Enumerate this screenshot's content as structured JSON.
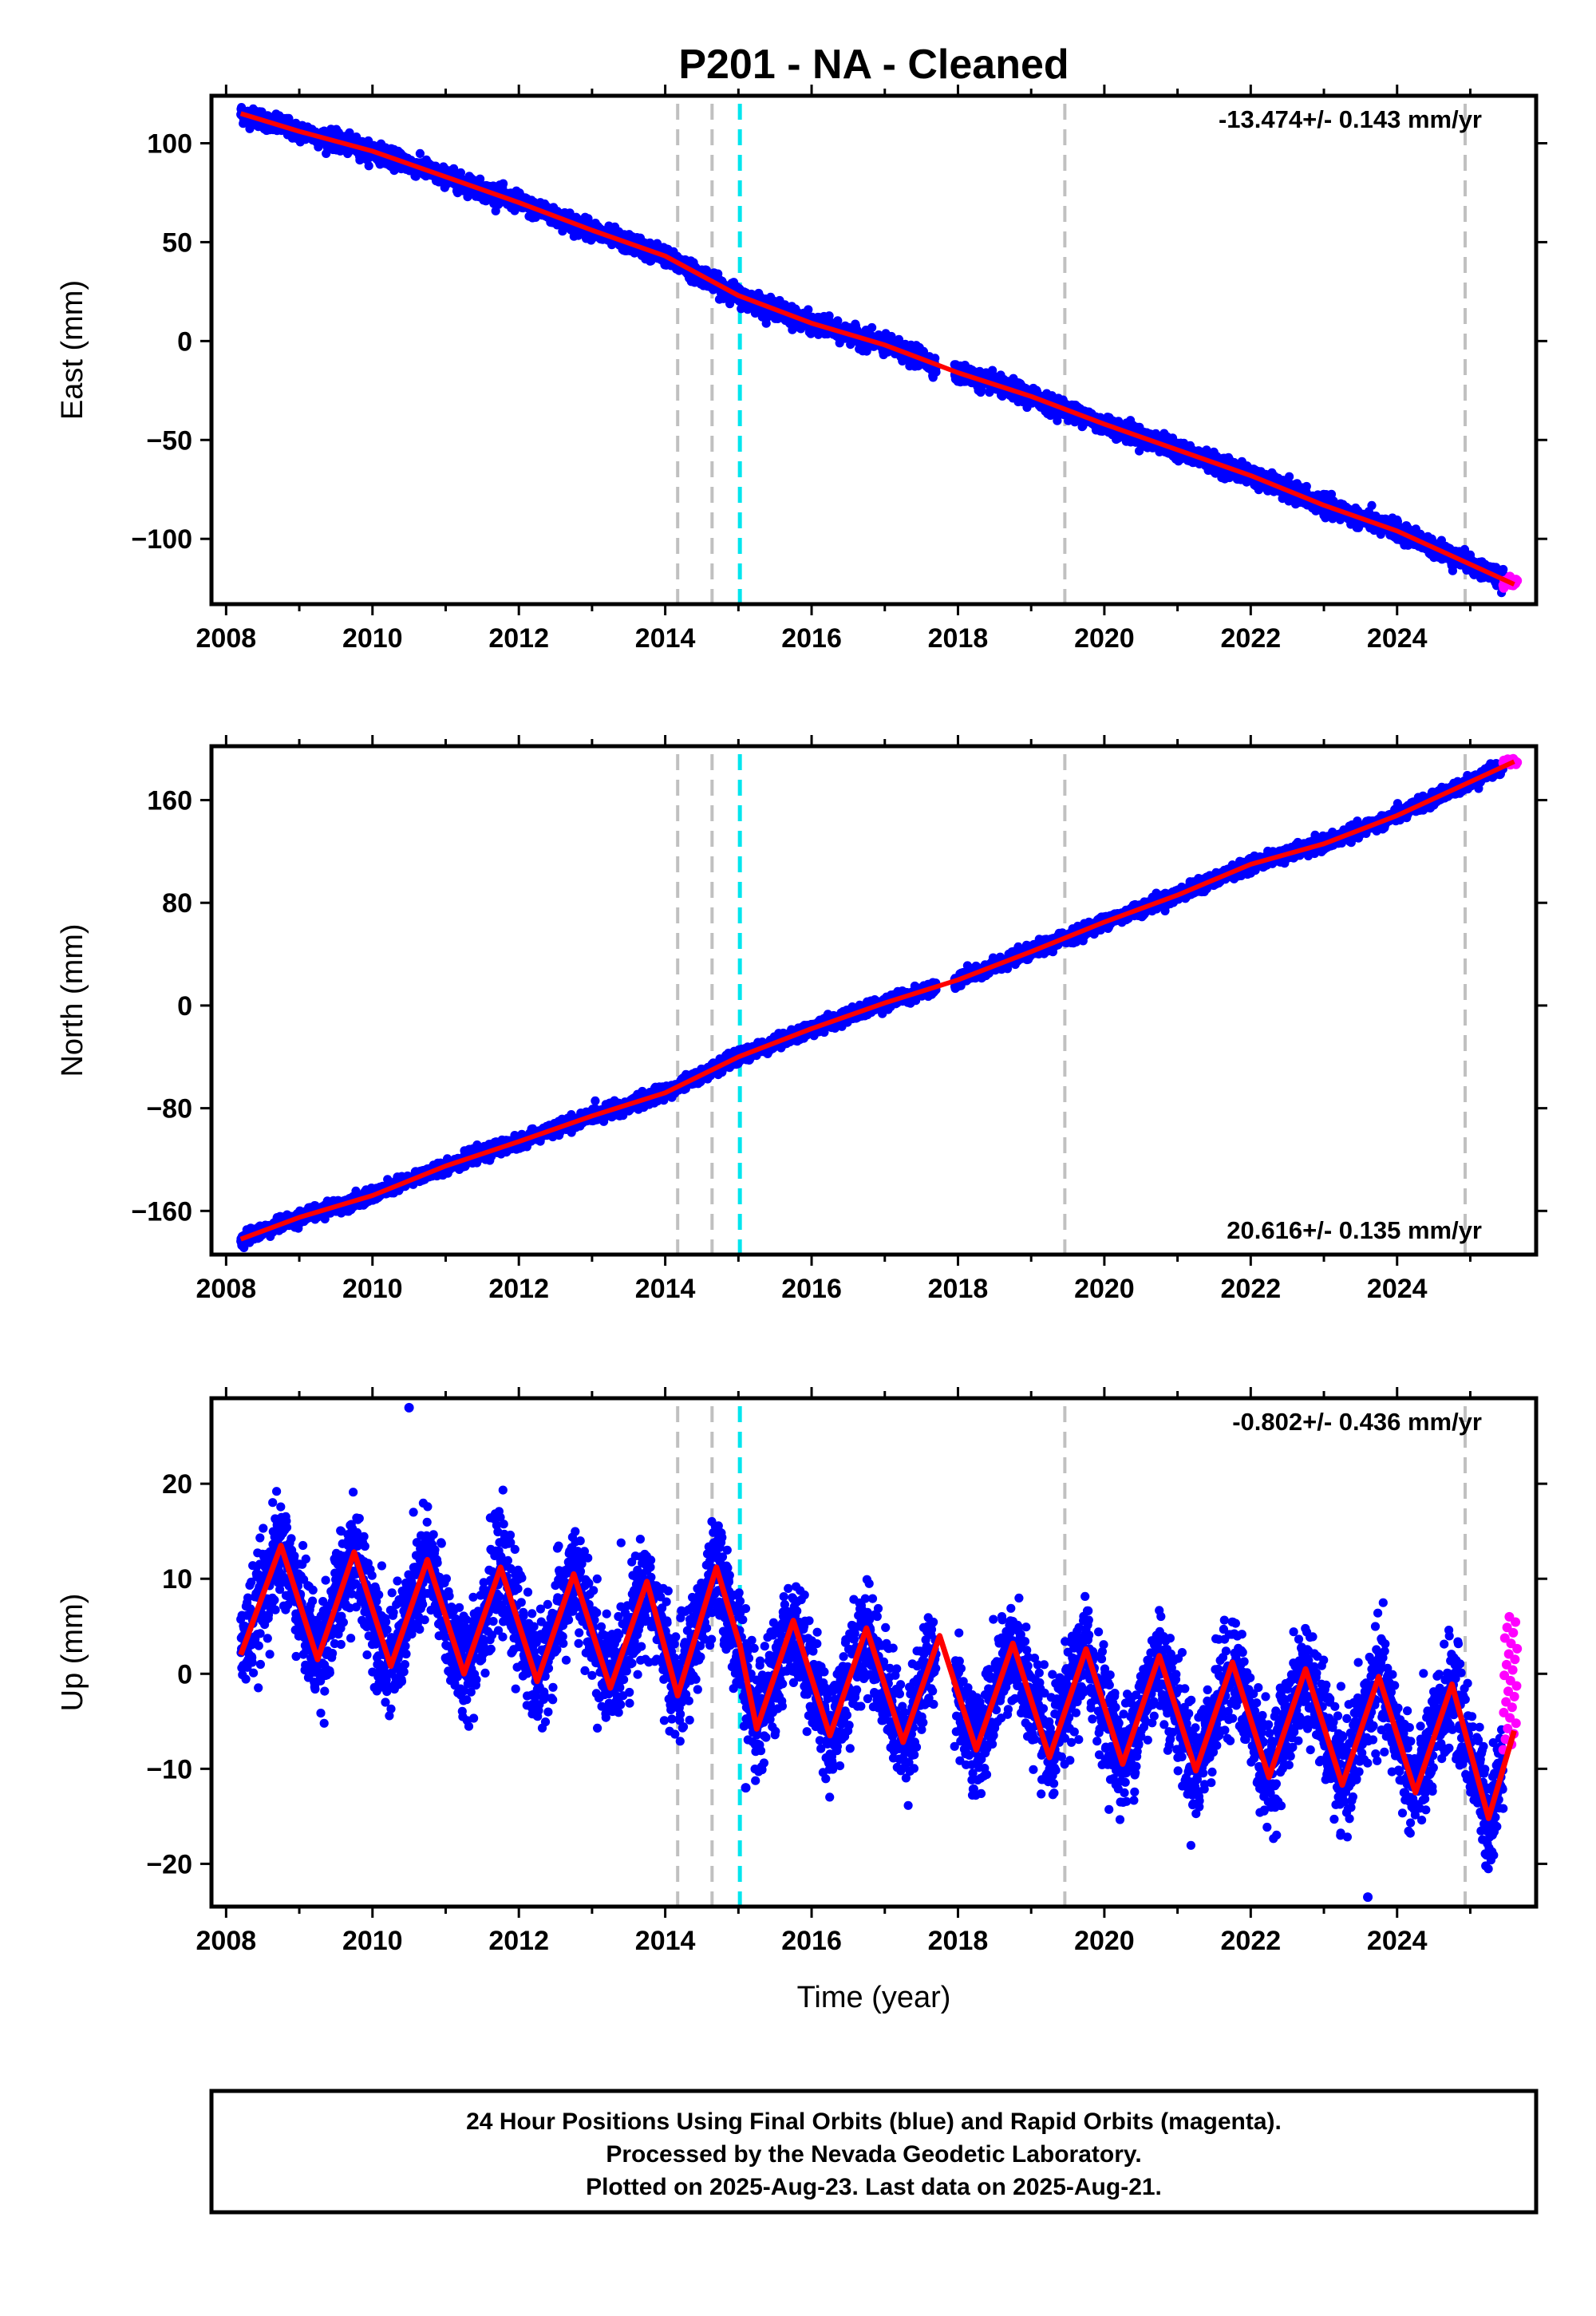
{
  "title": "P201  - NA - Cleaned",
  "colors": {
    "final": "#0000ff",
    "rapid": "#ff00ff",
    "model": "#ff0000",
    "event_gray": "#c0c0c0",
    "event_cyan": "#00e5ee"
  },
  "chart_data": [
    {
      "type": "scatter",
      "ylabel": "East (mm)",
      "xlim": [
        2007.8,
        2025.9
      ],
      "ylim": [
        -133,
        124
      ],
      "yticks": [
        100,
        50,
        0,
        -50,
        -100
      ],
      "xticks": [
        2008,
        2010,
        2012,
        2014,
        2016,
        2018,
        2020,
        2022,
        2024
      ],
      "rate_text": "-13.474+/- 0.143 mm/yr",
      "rate_position": "top-right",
      "series": [
        {
          "type": "line",
          "x": [
            2008.2,
            2009,
            2010,
            2011,
            2012,
            2013,
            2014,
            2015,
            2016,
            2017,
            2018,
            2019,
            2020,
            2021,
            2022,
            2023,
            2024,
            2025.6
          ],
          "y": [
            115,
            106,
            96,
            83,
            70,
            56,
            43,
            23,
            9,
            -2,
            -16,
            -28,
            -42,
            -55,
            -68,
            -83,
            -96,
            -123
          ]
        }
      ],
      "scatter_model": {
        "start": [
          2008.2,
          116
        ],
        "rate": -13.474,
        "annual_amp": 1.8,
        "noise": 2.2
      },
      "rapid_points": {
        "x_range": [
          2025.45,
          2025.64
        ],
        "y": -122
      },
      "event_lines": [
        {
          "x": 2014.17,
          "color": "gray"
        },
        {
          "x": 2014.64,
          "color": "gray"
        },
        {
          "x": 2015.02,
          "color": "cyan"
        },
        {
          "x": 2019.46,
          "color": "gray"
        },
        {
          "x": 2024.93,
          "color": "gray"
        }
      ]
    },
    {
      "type": "scatter",
      "ylabel": "North (mm)",
      "xlim": [
        2007.8,
        2025.9
      ],
      "ylim": [
        -194,
        202
      ],
      "yticks": [
        160,
        80,
        0,
        -80,
        -160
      ],
      "xticks": [
        2008,
        2010,
        2012,
        2014,
        2016,
        2018,
        2020,
        2022,
        2024
      ],
      "rate_text": "20.616+/- 0.135 mm/yr",
      "rate_position": "bottom-right",
      "series": [
        {
          "type": "line",
          "x": [
            2008.2,
            2009,
            2010,
            2011,
            2012,
            2013,
            2014,
            2015,
            2016,
            2017,
            2018,
            2019,
            2020,
            2021,
            2022,
            2023,
            2024,
            2025.6
          ],
          "y": [
            -182,
            -165,
            -148,
            -125,
            -106,
            -86,
            -68,
            -40,
            -18,
            2,
            20,
            42,
            65,
            86,
            110,
            126,
            148,
            190
          ]
        }
      ],
      "scatter_model": {
        "start": [
          2008.2,
          -180
        ],
        "rate": 20.616,
        "annual_amp": 2.0,
        "noise": 2.5
      },
      "rapid_points": {
        "x_range": [
          2025.45,
          2025.64
        ],
        "y": 190
      },
      "event_lines": [
        {
          "x": 2014.17,
          "color": "gray"
        },
        {
          "x": 2014.64,
          "color": "gray"
        },
        {
          "x": 2015.02,
          "color": "cyan"
        },
        {
          "x": 2019.46,
          "color": "gray"
        },
        {
          "x": 2024.93,
          "color": "gray"
        }
      ]
    },
    {
      "type": "scatter",
      "ylabel": "Up (mm)",
      "xlabel": "Time (year)",
      "xlim": [
        2007.8,
        2025.9
      ],
      "ylim": [
        -24.5,
        29
      ],
      "yticks": [
        20,
        10,
        0,
        -10,
        -20
      ],
      "xticks": [
        2008,
        2010,
        2012,
        2014,
        2016,
        2018,
        2020,
        2022,
        2024
      ],
      "rate_text": "-0.802+/- 0.436 mm/yr",
      "rate_position": "top-right",
      "series": [
        {
          "type": "line",
          "x": [
            2008.2,
            2008.75,
            2009.25,
            2009.75,
            2010.25,
            2010.75,
            2011.25,
            2011.75,
            2012.25,
            2012.75,
            2013.25,
            2013.75,
            2014.17,
            2014.7,
            2015.02,
            2015.25,
            2015.75,
            2016.25,
            2016.75,
            2017.25,
            2017.75,
            2018.25,
            2018.75,
            2019.25,
            2019.75,
            2020.25,
            2020.75,
            2021.25,
            2021.75,
            2022.25,
            2022.75,
            2023.25,
            2023.75,
            2024.25,
            2024.75,
            2025.25,
            2025.6
          ],
          "y": [
            2,
            13.5,
            1.5,
            12.8,
            0.8,
            12,
            0,
            11.2,
            -0.8,
            10.5,
            -1.5,
            9.7,
            -2.3,
            11.2,
            3,
            -5.8,
            5.6,
            -6.5,
            4.8,
            -7.2,
            4,
            -8,
            3.2,
            -8.8,
            2.6,
            -9.5,
            1.9,
            -10.2,
            1.2,
            -10.9,
            0.5,
            -11.7,
            -0.3,
            -12.5,
            -1.1,
            -15.2,
            -6
          ]
        }
      ],
      "scatter_model": {
        "noise": 2.8
      },
      "rapid_points": {
        "x_range": [
          2025.45,
          2025.64
        ],
        "y_range": [
          -8,
          6
        ]
      },
      "outliers": [
        {
          "x": 2010.5,
          "y": 28
        },
        {
          "x": 2015.1,
          "y": -12
        },
        {
          "x": 2023.6,
          "y": -23.5
        }
      ],
      "event_lines": [
        {
          "x": 2014.17,
          "color": "gray"
        },
        {
          "x": 2014.64,
          "color": "gray"
        },
        {
          "x": 2015.02,
          "color": "cyan"
        },
        {
          "x": 2019.46,
          "color": "gray"
        },
        {
          "x": 2024.93,
          "color": "gray"
        }
      ]
    }
  ],
  "footer": {
    "line1": "24 Hour Positions Using Final Orbits (blue) and Rapid Orbits (magenta).",
    "line2": "Processed by the Nevada Geodetic Laboratory.",
    "line3": "Plotted on 2025-Aug-23. Last data on 2025-Aug-21."
  }
}
